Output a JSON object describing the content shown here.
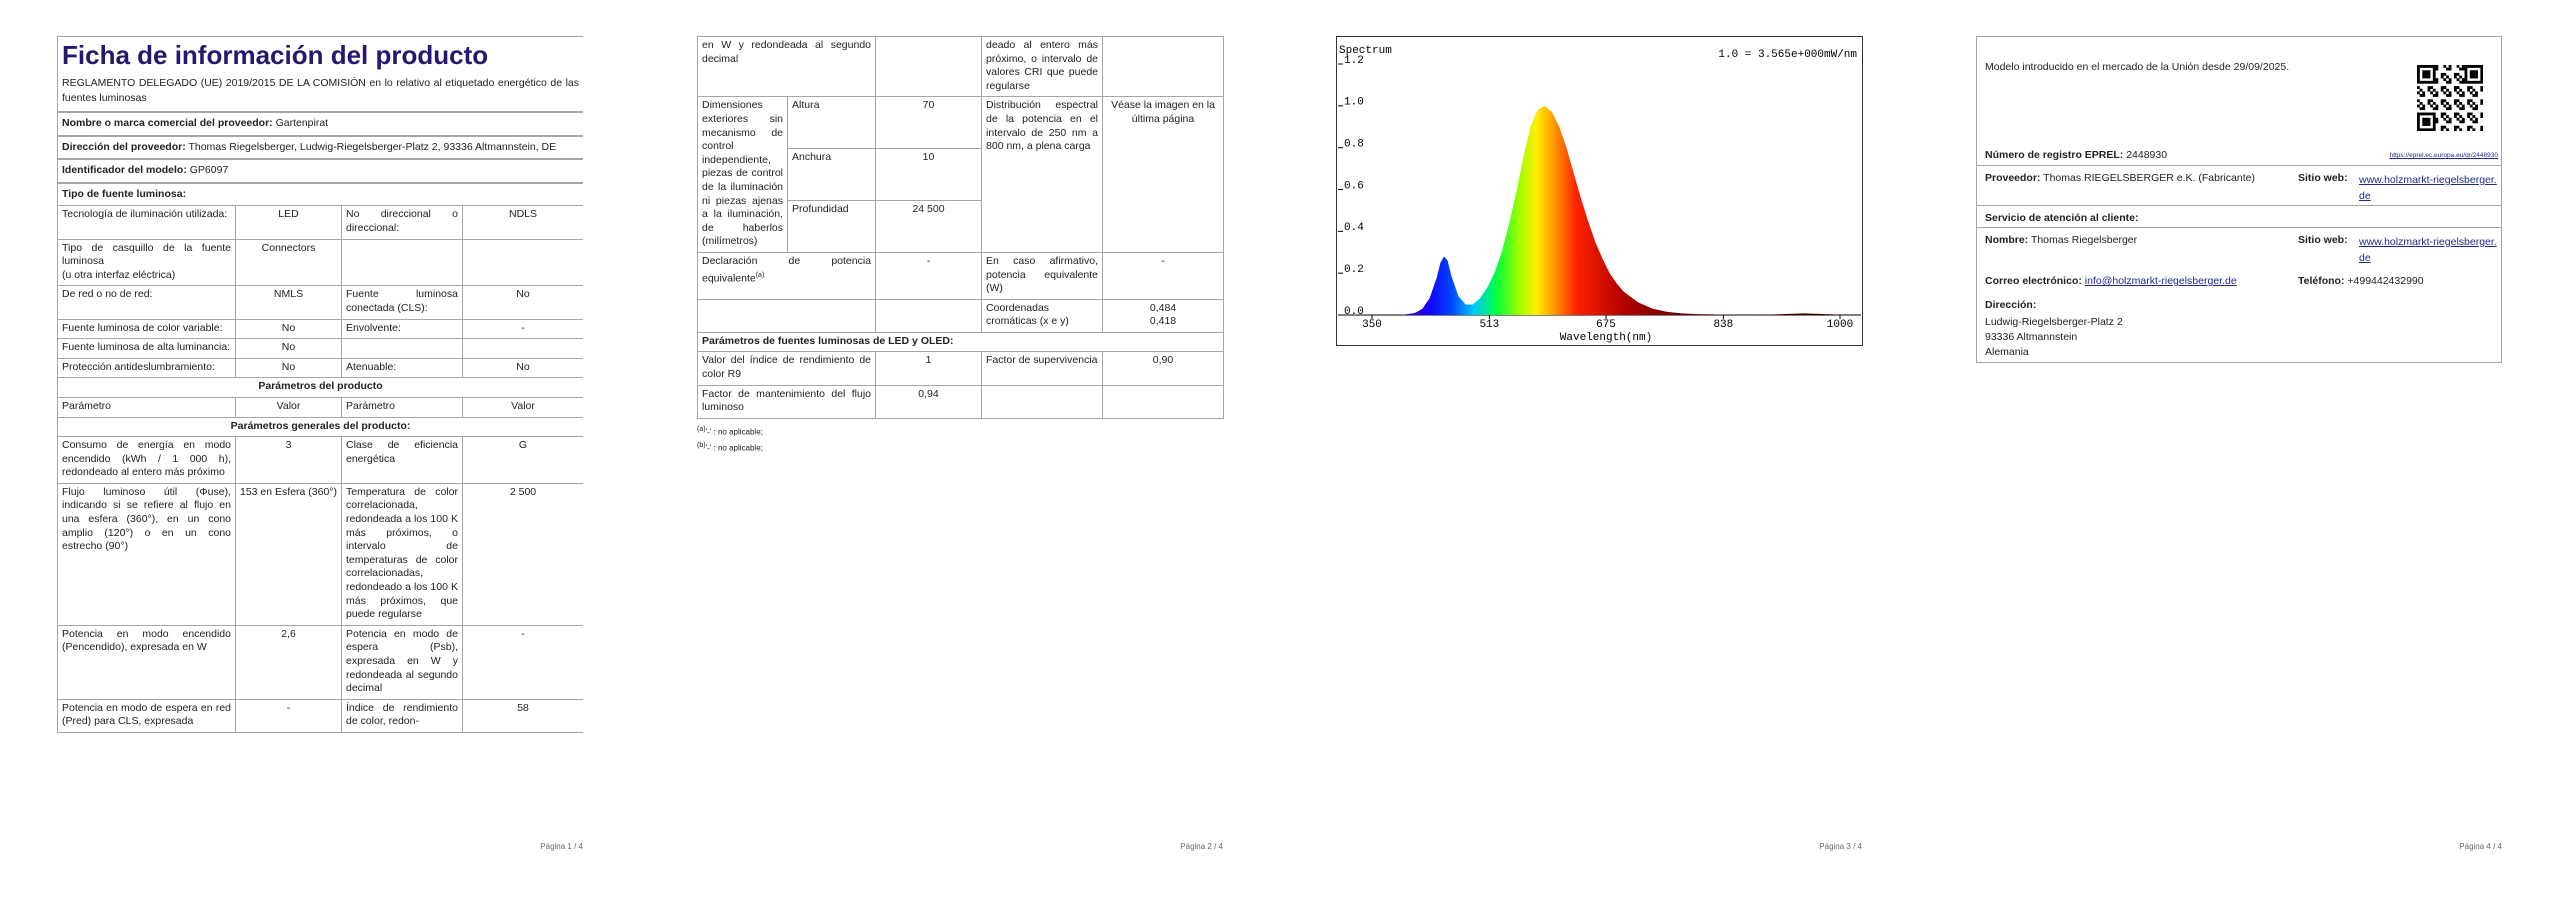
{
  "pages": [
    {
      "title": "Ficha de información del producto",
      "regulation": "REGLAMENTO DELEGADO (UE) 2019/2015 DE LA COMISIÓN en lo relativo al etiquetado energético de las fuentes luminosas",
      "fields": [
        {
          "label": "Nombre o marca comercial del proveedor:",
          "value": "Gartenpirat"
        },
        {
          "label": "Dirección del proveedor:",
          "value": "Thomas Riegelsberger, Ludwig-Riegelsberger-Platz 2, 93336 Altmannstein, DE"
        },
        {
          "label": "Identificador del modelo:",
          "value": "GP6097"
        }
      ],
      "light_source_heading": "Tipo de fuente luminosa:",
      "light_source_rows": [
        [
          "Tecnología de iluminación utilizada:",
          "LED",
          "No direccional o direccional:",
          "NDLS"
        ],
        [
          "Tipo de casquillo de la fuente luminosa\n(u otra interfaz eléctrica)",
          "Connectors",
          null,
          null
        ],
        [
          "De red o no de red:",
          "NMLS",
          "Fuente luminosa conectada (CLS):",
          "No"
        ],
        [
          "Fuente luminosa de color variable:",
          "No",
          "Envolvente:",
          "-"
        ],
        [
          "Fuente luminosa de alta luminancia:",
          "No",
          null,
          null
        ],
        [
          "Protección antideslumbramiento:",
          "No",
          "Atenuable:",
          "No"
        ]
      ],
      "parameters_heading": "Parámetros del producto",
      "columns": [
        "Parámetro",
        "Valor",
        "Parámetro",
        "Valor"
      ],
      "general_heading": "Parámetros generales del producto:",
      "general_rows": [
        [
          "Consumo de energía en modo encendido (kWh / 1 000 h), redondeado al entero más próximo",
          "3",
          "Clase de eficiencia energética",
          "G"
        ],
        [
          "Flujo luminoso útil (Φuse), indicando si se refiere al flujo en una esfera (360°), en un cono amplio (120°) o en un cono estrecho (90°)",
          "153 en Esfera (360°)",
          "Temperatura de color correlacionada, redondeada a los 100 K más próximos, o intervalo de temperaturas de color correlacionadas, redondeado a los 100 K más próximos, que puede regularse",
          "2 500"
        ],
        [
          "Potencia en modo encendido (Pencendido), expresada en W",
          "2,6",
          "Potencia en modo de espera (Psb), expresada en W y redondeada al segundo decimal",
          "-"
        ],
        [
          "Potencia en modo de espera en red (Pred) para CLS, expresada",
          "-",
          "Índice de rendimiento de color, redon-",
          "58"
        ]
      ],
      "footer": "Página 1 / 4"
    },
    {
      "continued_row": [
        "en W y redondeada al segundo decimal",
        null,
        "deado al entero más próximo, o intervalo de valores CRI que puede regularse",
        null
      ],
      "dimensions": {
        "label": "Dimensiones exteriores sin mecanismo de control independiente, piezas de control de la iluminación ni piezas ajenas a la iluminación, de haberlos (milímetros)",
        "rows": [
          [
            "Altura",
            "70"
          ],
          [
            "Anchura",
            "10"
          ],
          [
            "Profundidad",
            "24 500"
          ]
        ],
        "parameter": "Distribución espectral de la potencia en el intervalo de 250 nm a 800 nm, a plena carga",
        "value": "Véase la imagen en la última página"
      },
      "equivalent_row": {
        "cells": [
          "Declaración de potencia equivalente",
          "-",
          "En caso afirmativo, potencia equivalente (W)",
          "-"
        ],
        "note": "(a)"
      },
      "chromaticity_row": [
        null,
        null,
        "Coordenadas cromáticas (x e y)",
        "0,484\n0,418"
      ],
      "led_heading": "Parámetros de fuentes luminosas de LED y OLED:",
      "led_rows": [
        [
          "Valor del índice de rendimiento de color R9",
          "1",
          "Factor de supervivencia",
          "0,90"
        ],
        [
          "Factor de mantenimiento del flujo luminoso",
          "0,94",
          null,
          null
        ]
      ],
      "footnotes": [
        {
          "mark": "(a)",
          "text": "'-' : no aplicable;"
        },
        {
          "mark": "(b)",
          "text": "'-' : no aplicable;"
        }
      ],
      "footer": "Página 2 / 4"
    },
    {
      "footer": "Página 3 / 4"
    },
    {
      "market_date": "Modelo introducido en el mercado de la Unión desde 29/09/2025.",
      "eprel_label": "Número de registro EPREL:",
      "eprel_value": "2448930",
      "eprel_url": "https://eprel.ec.europa.eu/qr/2448930",
      "supplier_label": "Proveedor:",
      "supplier_value": "Thomas RIEGELSBERGER e.K. (Fabricante)",
      "website_label": "Sitio web:",
      "website_value": "www.holzmarkt-riegelsberger.de",
      "service_heading": "Servicio de atención al cliente:",
      "name_label": "Nombre:",
      "name_value": "Thomas Riegelsberger",
      "service_website_label": "Sitio web:",
      "service_website_value": "www.holzmarkt-riegelsberger.de",
      "email_label": "Correo electrónico:",
      "email_value": "info@holzmarkt-riegelsberger.de",
      "phone_label": "Teléfono:",
      "phone_value": "+499442432990",
      "address_label": "Dirección:",
      "address_lines": [
        "Ludwig-Riegelsberger-Platz 2",
        "93336 Altmannstein",
        "Alemania"
      ],
      "footer": "Página 4 / 4"
    }
  ],
  "chart_data": {
    "type": "area",
    "title": "Spectrum",
    "annotation": "1.0 = 3.565e+000mW/nm",
    "x_label": "Wavelength(nm)",
    "x": [
      380,
      390,
      400,
      410,
      420,
      430,
      440,
      445,
      450,
      455,
      460,
      470,
      480,
      490,
      500,
      510,
      520,
      530,
      540,
      550,
      560,
      570,
      580,
      590,
      600,
      610,
      620,
      630,
      640,
      650,
      660,
      670,
      680,
      690,
      700,
      720,
      740,
      760,
      780,
      800,
      850,
      900,
      950,
      1000
    ],
    "values": [
      0,
      0,
      0.005,
      0.01,
      0.03,
      0.08,
      0.18,
      0.25,
      0.28,
      0.26,
      0.19,
      0.09,
      0.05,
      0.05,
      0.08,
      0.13,
      0.2,
      0.3,
      0.43,
      0.58,
      0.75,
      0.9,
      0.98,
      1.0,
      0.97,
      0.9,
      0.8,
      0.68,
      0.56,
      0.45,
      0.35,
      0.27,
      0.2,
      0.15,
      0.11,
      0.06,
      0.03,
      0.015,
      0.008,
      0.004,
      0.001,
      0.002,
      0.008,
      0.002
    ],
    "xlim": [
      350,
      1000
    ],
    "xticks": [
      350,
      513,
      675,
      838,
      1000
    ],
    "ylim": [
      0,
      1.2
    ],
    "yticks": [
      {
        "value": 0,
        "label": "0.0"
      },
      0.2,
      0.4,
      0.6,
      0.8,
      {
        "value": 1,
        "label": "1.0"
      },
      1.2
    ]
  }
}
